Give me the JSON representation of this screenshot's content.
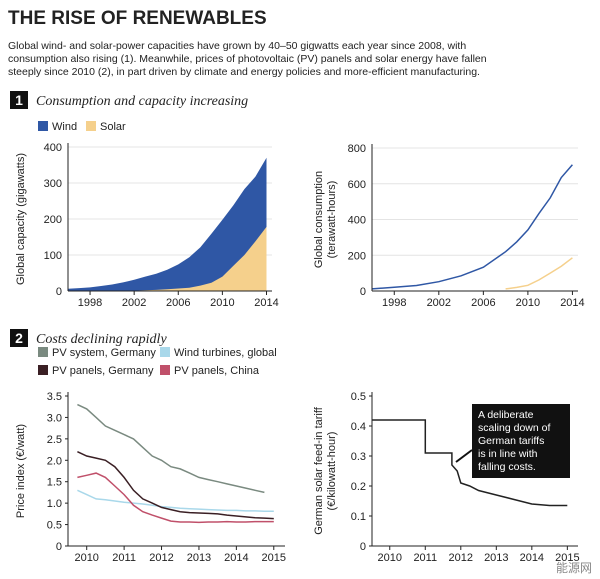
{
  "header": {
    "title": "THE RISE OF RENEWABLES",
    "subtitle": [
      "Global wind- and solar-power capacities have grown by 40–50 gigwatts each year since 2008, with",
      "consumption also rising (1). Meanwhile, prices of photovoltaic (PV) panels and solar energy have fallen",
      "steeply since 2010 (2), in part driven by climate and energy policies and more-efficient manufacturing."
    ]
  },
  "sections": [
    {
      "number": "1",
      "title": "Consumption and capacity increasing"
    },
    {
      "number": "2",
      "title": "Costs declining rapidly"
    }
  ],
  "watermark": "能源网",
  "chart_data": [
    {
      "type": "area",
      "ylabel": [
        "Global capacity (gigawatts)"
      ],
      "x": [
        1996,
        1997,
        1998,
        1999,
        2000,
        2001,
        2002,
        2003,
        2004,
        2005,
        2006,
        2007,
        2008,
        2009,
        2010,
        2011,
        2012,
        2013,
        2014
      ],
      "series": [
        {
          "name": "Wind",
          "color": "#2f57a5",
          "values": [
            6,
            8,
            10,
            14,
            18,
            24,
            31,
            40,
            48,
            59,
            74,
            94,
            121,
            159,
            198,
            238,
            283,
            318,
            370
          ]
        },
        {
          "name": "Solar",
          "color": "#f5d08c",
          "values": [
            0,
            0,
            0,
            0,
            1,
            1,
            1,
            2,
            3,
            5,
            7,
            9,
            15,
            23,
            40,
            70,
            100,
            138,
            178
          ]
        }
      ],
      "xlim": [
        1996,
        2014.5
      ],
      "xticks": [
        1998,
        2002,
        2006,
        2010,
        2014
      ],
      "ylim": [
        0,
        400
      ],
      "yticks": [
        0,
        100,
        200,
        300,
        400
      ],
      "grid": true
    },
    {
      "type": "line",
      "ylabel": [
        "Global consumption",
        "(terawatt-hours)"
      ],
      "x": [
        1996,
        1998,
        2000,
        2002,
        2004,
        2006,
        2008,
        2009,
        2010,
        2011,
        2012,
        2013,
        2014
      ],
      "series": [
        {
          "color": "#2f57a5",
          "values": [
            12,
            21,
            31,
            52,
            85,
            133,
            220,
            275,
            342,
            434,
            521,
            635,
            706
          ]
        },
        {
          "color": "#f5d08c",
          "values": [
            null,
            null,
            null,
            null,
            null,
            null,
            12,
            20,
            32,
            62,
            100,
            139,
            186
          ]
        }
      ],
      "xlim": [
        1996,
        2014.5
      ],
      "xticks": [
        1998,
        2002,
        2006,
        2010,
        2014
      ],
      "ylim": [
        0,
        800
      ],
      "yticks": [
        0,
        200,
        400,
        600,
        800
      ],
      "grid": true
    },
    {
      "type": "line",
      "ylabel": [
        "Price index (€/watt)"
      ],
      "x": [
        2009.75,
        2010,
        2010.25,
        2010.5,
        2010.75,
        2011,
        2011.25,
        2011.5,
        2011.75,
        2012,
        2012.25,
        2012.5,
        2012.75,
        2013,
        2013.25,
        2013.5,
        2013.75,
        2014,
        2014.25,
        2014.5,
        2014.75,
        2015
      ],
      "series": [
        {
          "name": "PV system, Germany",
          "color": "#7a8a80",
          "values": [
            3.3,
            3.2,
            3.0,
            2.8,
            2.7,
            2.6,
            2.5,
            2.3,
            2.1,
            2.0,
            1.85,
            1.8,
            1.7,
            1.6,
            1.55,
            1.5,
            1.45,
            1.4,
            1.35,
            1.3,
            1.25,
            null
          ]
        },
        {
          "name": "Wind turbines, global",
          "color": "#a9d8ea",
          "values": [
            1.3,
            1.2,
            1.1,
            1.08,
            1.05,
            1.02,
            1.0,
            0.98,
            0.95,
            0.92,
            0.9,
            0.88,
            0.87,
            0.86,
            0.85,
            0.84,
            0.83,
            0.83,
            0.82,
            0.82,
            0.81,
            0.81
          ]
        },
        {
          "name": "PV panels, Germany",
          "color": "#3a1f24",
          "values": [
            2.2,
            2.1,
            2.05,
            2.0,
            1.85,
            1.6,
            1.3,
            1.1,
            1.0,
            0.9,
            0.85,
            0.8,
            0.78,
            0.77,
            0.76,
            0.75,
            0.72,
            0.7,
            0.68,
            0.66,
            0.65,
            0.64
          ]
        },
        {
          "name": "PV panels, China",
          "color": "#c0506a",
          "values": [
            1.6,
            1.65,
            1.7,
            1.6,
            1.4,
            1.2,
            0.95,
            0.8,
            0.72,
            0.65,
            0.58,
            0.56,
            0.56,
            0.55,
            0.56,
            0.56,
            0.57,
            0.56,
            0.56,
            0.57,
            0.57,
            0.57
          ]
        }
      ],
      "xlim": [
        2009.5,
        2015.3
      ],
      "xticks": [
        2010,
        2011,
        2012,
        2013,
        2014,
        2015
      ],
      "ylim": [
        0,
        3.5
      ],
      "yticks": [
        0,
        0.5,
        {
          "value": 1,
          "label": "1.0"
        },
        1.5,
        {
          "value": 2,
          "label": "2.0"
        },
        2.5,
        {
          "value": 3,
          "label": "3.0"
        },
        3.5
      ],
      "grid": false
    },
    {
      "type": "line",
      "ylabel": [
        "German solar feed-in tariff",
        "(€/kilowatt-hour)"
      ],
      "annotation": [
        "A deliberate",
        "scaling down of",
        "German tariffs",
        "is in line with",
        "falling costs."
      ],
      "x": [
        2009.5,
        2011.0,
        2011.0,
        2011.75,
        2011.75,
        2011.9,
        2012.0,
        2012.25,
        2012.5,
        2013.0,
        2013.5,
        2014.0,
        2014.5,
        2015.0
      ],
      "series": [
        {
          "color": "#222222",
          "values": [
            0.42,
            0.42,
            0.31,
            0.31,
            0.27,
            0.25,
            0.21,
            0.2,
            0.185,
            0.17,
            0.155,
            0.14,
            0.135,
            0.135
          ]
        }
      ],
      "xlim": [
        2009.5,
        2015.3
      ],
      "xticks": [
        2010,
        2011,
        2012,
        2013,
        2014,
        2015
      ],
      "ylim": [
        0,
        0.5
      ],
      "yticks": [
        0,
        0.1,
        0.2,
        0.3,
        0.4,
        0.5
      ],
      "grid": false
    }
  ]
}
